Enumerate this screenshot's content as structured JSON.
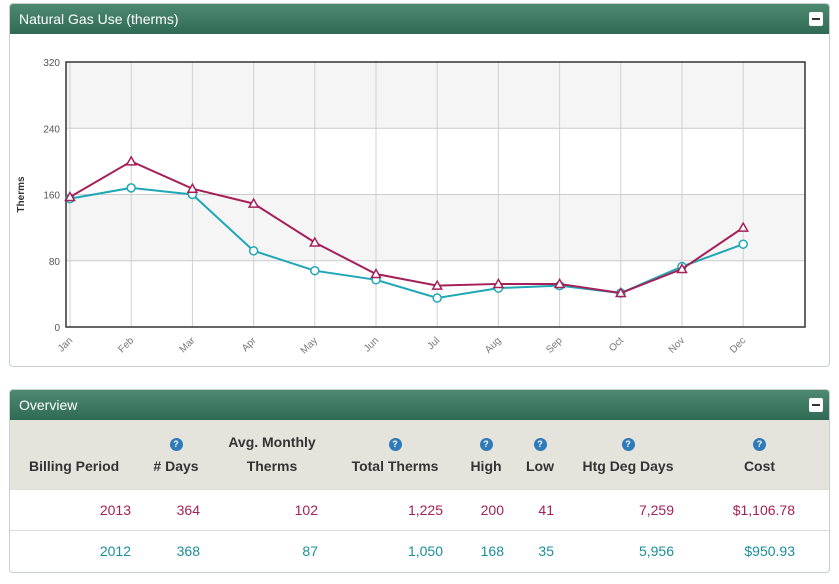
{
  "chart_panel": {
    "title": "Natural Gas Use (therms)"
  },
  "chart_data": {
    "type": "line",
    "title": "Natural Gas Use (therms)",
    "ylabel": "Therms",
    "xlabel": "",
    "categories": [
      "Jan",
      "Feb",
      "Mar",
      "Apr",
      "May",
      "Jun",
      "Jul",
      "Aug",
      "Sep",
      "Oct",
      "Nov",
      "Dec"
    ],
    "ylim": [
      0,
      320
    ],
    "yticks": [
      0,
      80,
      160,
      240,
      320
    ],
    "grid": true,
    "series": [
      {
        "name": "2013",
        "marker": "triangle",
        "color": "#a52058",
        "values": [
          157,
          200,
          167,
          149,
          102,
          64,
          50,
          52,
          52,
          41,
          70,
          120
        ]
      },
      {
        "name": "2012",
        "marker": "circle",
        "color": "#1fa7b5",
        "values": [
          155,
          168,
          160,
          92,
          68,
          57,
          35,
          47,
          50,
          41,
          73,
          100
        ]
      }
    ]
  },
  "overview": {
    "title": "Overview",
    "help_glyph": "?",
    "headers": {
      "billing_period": "Billing Period",
      "days": "# Days",
      "avg_monthly_1": "Avg. Monthly",
      "avg_monthly_2": "Therms",
      "total_therms": "Total Therms",
      "high": "High",
      "low": "Low",
      "htg_deg_days": "Htg Deg Days",
      "cost": "Cost"
    },
    "rows": [
      {
        "period": "2013",
        "days": "364",
        "avg": "102",
        "total": "1,225",
        "high": "200",
        "low": "41",
        "hdd": "7,259",
        "cost": "$1,106.78"
      },
      {
        "period": "2012",
        "days": "368",
        "avg": "87",
        "total": "1,050",
        "high": "168",
        "low": "35",
        "hdd": "5,956",
        "cost": "$950.93"
      }
    ]
  }
}
